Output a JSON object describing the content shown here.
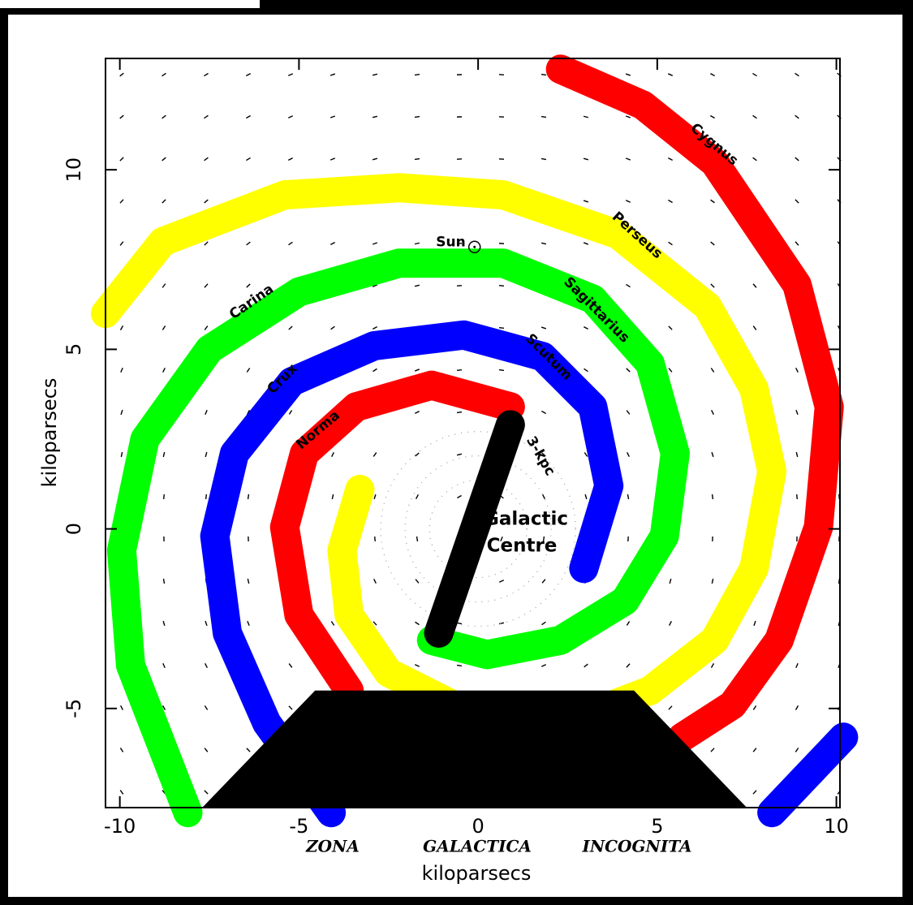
{
  "chart_data": {
    "type": "arms",
    "xlabel": "kiloparsecs",
    "ylabel": "kiloparsecs",
    "xlim": [
      -10.4,
      10.1
    ],
    "ylim": [
      -7.76,
      13.1
    ],
    "xticks": [
      -10,
      -5,
      0,
      5,
      10
    ],
    "yticks": [
      -5,
      0,
      5,
      10
    ],
    "series": [
      {
        "color": "#ff0000",
        "x": [
          2.3,
          4.6,
          6.6,
          8.9,
          9.8,
          9.5,
          8.4,
          7.1,
          5.7
        ],
        "y": [
          12.8,
          11.8,
          10.2,
          6.8,
          3.4,
          0.05,
          -3.1,
          -4.9,
          -5.8
        ]
      },
      {
        "color": "#ffff00",
        "x": [
          -3.3,
          -3.8,
          -3.6,
          -2.5,
          -0.7,
          1.5,
          3.5,
          4.8,
          6.6,
          7.7,
          8.2,
          7.7,
          6.4,
          3.9,
          0.7,
          -2.2,
          -5.4,
          -8.8,
          -10.4
        ],
        "y": [
          1.1,
          -0.6,
          -2.4,
          -4.0,
          -4.9,
          -5.3,
          -5.0,
          -4.5,
          -3.1,
          -1.1,
          1.6,
          3.9,
          6.2,
          8.2,
          9.3,
          9.5,
          9.3,
          8.0,
          6.0
        ]
      },
      {
        "color": "#00ff00",
        "x": [
          -8.1,
          -9.7,
          -9.95,
          -9.3,
          -7.5,
          -5.0,
          -2.2,
          0.7,
          3.2,
          4.8,
          5.5,
          5.2,
          4.1,
          2.3,
          0.25,
          -1.3
        ],
        "y": [
          -7.9,
          -3.8,
          -0.6,
          2.5,
          5.0,
          6.6,
          7.4,
          7.4,
          6.4,
          4.6,
          2.1,
          -0.2,
          -2.0,
          -3.1,
          -3.5,
          -3.1
        ]
      },
      {
        "color": "#0000ff",
        "x": [
          -4.1,
          -5.9,
          -7.0,
          -7.35,
          -6.8,
          -5.2,
          -2.9,
          -0.4,
          1.8,
          3.2,
          3.65,
          2.95
        ],
        "y": [
          -7.9,
          -5.4,
          -2.9,
          -0.2,
          2.1,
          4.1,
          5.1,
          5.4,
          4.8,
          3.4,
          1.2,
          -1.1
        ]
      },
      {
        "color": "#ff0000",
        "x": [
          -3.6,
          -5.0,
          -5.4,
          -4.85,
          -3.4,
          -1.3,
          0.9
        ],
        "y": [
          -4.5,
          -2.4,
          0.05,
          2.1,
          3.4,
          4.0,
          3.4
        ]
      },
      {
        "color": "#0000ff",
        "x": [
          8.2,
          10.2
        ],
        "y": [
          -7.9,
          -5.8
        ]
      },
      {
        "color": "#000000",
        "x": [
          0.9,
          -1.1
        ],
        "y": [
          2.9,
          -2.9
        ]
      }
    ],
    "annotations": [
      "Cygnus",
      "Perseus",
      "Sagittarius",
      "Carina",
      "Scutum",
      "Crux",
      "Norma",
      "3-kpc",
      "Galactic",
      "Centre"
    ],
    "sun": {
      "label": "Sun",
      "x": -0.1,
      "y": 7.85
    },
    "centre": {
      "x": 0,
      "y": 0
    },
    "zone": {
      "labels": [
        "ZONA",
        "GALACTICA",
        "INCOGNITA"
      ],
      "color": "#000000",
      "x": [
        -7.7,
        -4.55,
        4.35,
        7.5
      ],
      "y": [
        -7.76,
        -4.5,
        -4.5,
        -7.76
      ]
    }
  }
}
